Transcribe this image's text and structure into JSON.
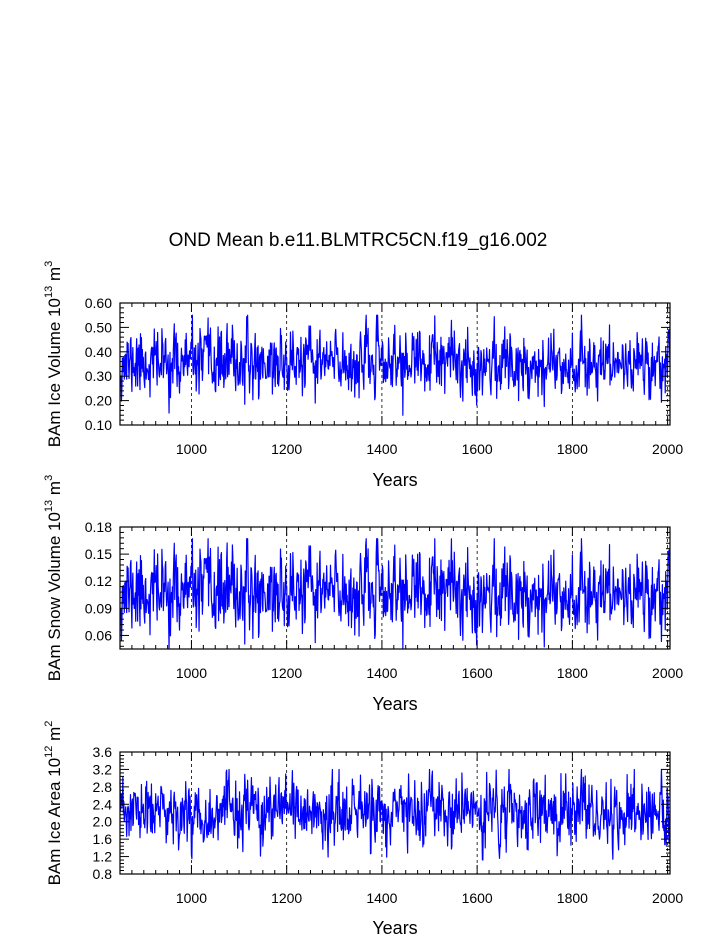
{
  "title": "OND Mean b.e11.BLMTRC5CN.f19_g16.002",
  "colors": {
    "series": "#0000ff",
    "axis": "#000000",
    "grid": "#000000"
  },
  "chart_data": [
    {
      "type": "line",
      "title": "OND Mean b.e11.BLMTRC5CN.f19_g16.002",
      "xlabel": "Years",
      "ylabel": {
        "text": "BAm Ice Volume 10",
        "exp": "13",
        "unit": " m",
        "unit_exp": "3"
      },
      "xlim": [
        850,
        2005
      ],
      "ylim": [
        0.1,
        0.6
      ],
      "xticks": [
        1000,
        1200,
        1400,
        1600,
        1800,
        2000
      ],
      "xtick_labels": [
        "1000",
        "1200",
        "1400",
        "1600",
        "1800",
        "2000"
      ],
      "yticks": [
        0.1,
        0.2,
        0.3,
        0.4,
        0.5,
        0.6
      ],
      "ytick_labels": [
        "0.10",
        "0.20",
        "0.30",
        "0.40",
        "0.50",
        "0.60"
      ],
      "gridlines_x": [
        1000,
        1200,
        1400,
        1600,
        1800,
        2000
      ],
      "series": [
        {
          "name": "Ice Volume",
          "x_start": 850,
          "x_end": 2005,
          "mean": 0.355,
          "sd": 0.065,
          "min": 0.14,
          "max": 0.55,
          "seed": 11
        }
      ]
    },
    {
      "type": "line",
      "xlabel": "Years",
      "ylabel": {
        "text": "BAm Snow Volume 10",
        "exp": "13",
        "unit": " m",
        "unit_exp": "3"
      },
      "xlim": [
        850,
        2005
      ],
      "ylim": [
        0.045,
        0.18
      ],
      "xticks": [
        1000,
        1200,
        1400,
        1600,
        1800,
        2000
      ],
      "xtick_labels": [
        "1000",
        "1200",
        "1400",
        "1600",
        "1800",
        "2000"
      ],
      "yticks": [
        0.06,
        0.09,
        0.12,
        0.15,
        0.18
      ],
      "ytick_labels": [
        "0.06",
        "0.09",
        "0.12",
        "0.15",
        "0.18"
      ],
      "gridlines_x": [
        1000,
        1200,
        1400,
        1600,
        1800,
        2000
      ],
      "series": [
        {
          "name": "Snow Volume",
          "x_start": 850,
          "x_end": 2005,
          "mean": 0.108,
          "sd": 0.022,
          "min": 0.045,
          "max": 0.167,
          "seed": 11
        }
      ]
    },
    {
      "type": "line",
      "xlabel": "Years",
      "ylabel": {
        "text": "BAm Ice Area 10",
        "exp": "12",
        "unit": " m",
        "unit_exp": "2"
      },
      "xlim": [
        850,
        2005
      ],
      "ylim": [
        0.8,
        3.6
      ],
      "xticks": [
        1000,
        1200,
        1400,
        1600,
        1800,
        2000
      ],
      "xtick_labels": [
        "1000",
        "1200",
        "1400",
        "1600",
        "1800",
        "2000"
      ],
      "yticks": [
        0.8,
        1.2,
        1.6,
        2.0,
        2.4,
        2.8,
        3.2,
        3.6
      ],
      "ytick_labels": [
        "0.8",
        "1.2",
        "1.6",
        "2.0",
        "2.4",
        "2.8",
        "3.2",
        "3.6"
      ],
      "gridlines_x": [
        1000,
        1200,
        1400,
        1600,
        1800,
        2000
      ],
      "series": [
        {
          "name": "Ice Area",
          "x_start": 850,
          "x_end": 2005,
          "mean": 2.2,
          "sd": 0.36,
          "min": 1.1,
          "max": 3.2,
          "seed": 23
        }
      ]
    }
  ]
}
